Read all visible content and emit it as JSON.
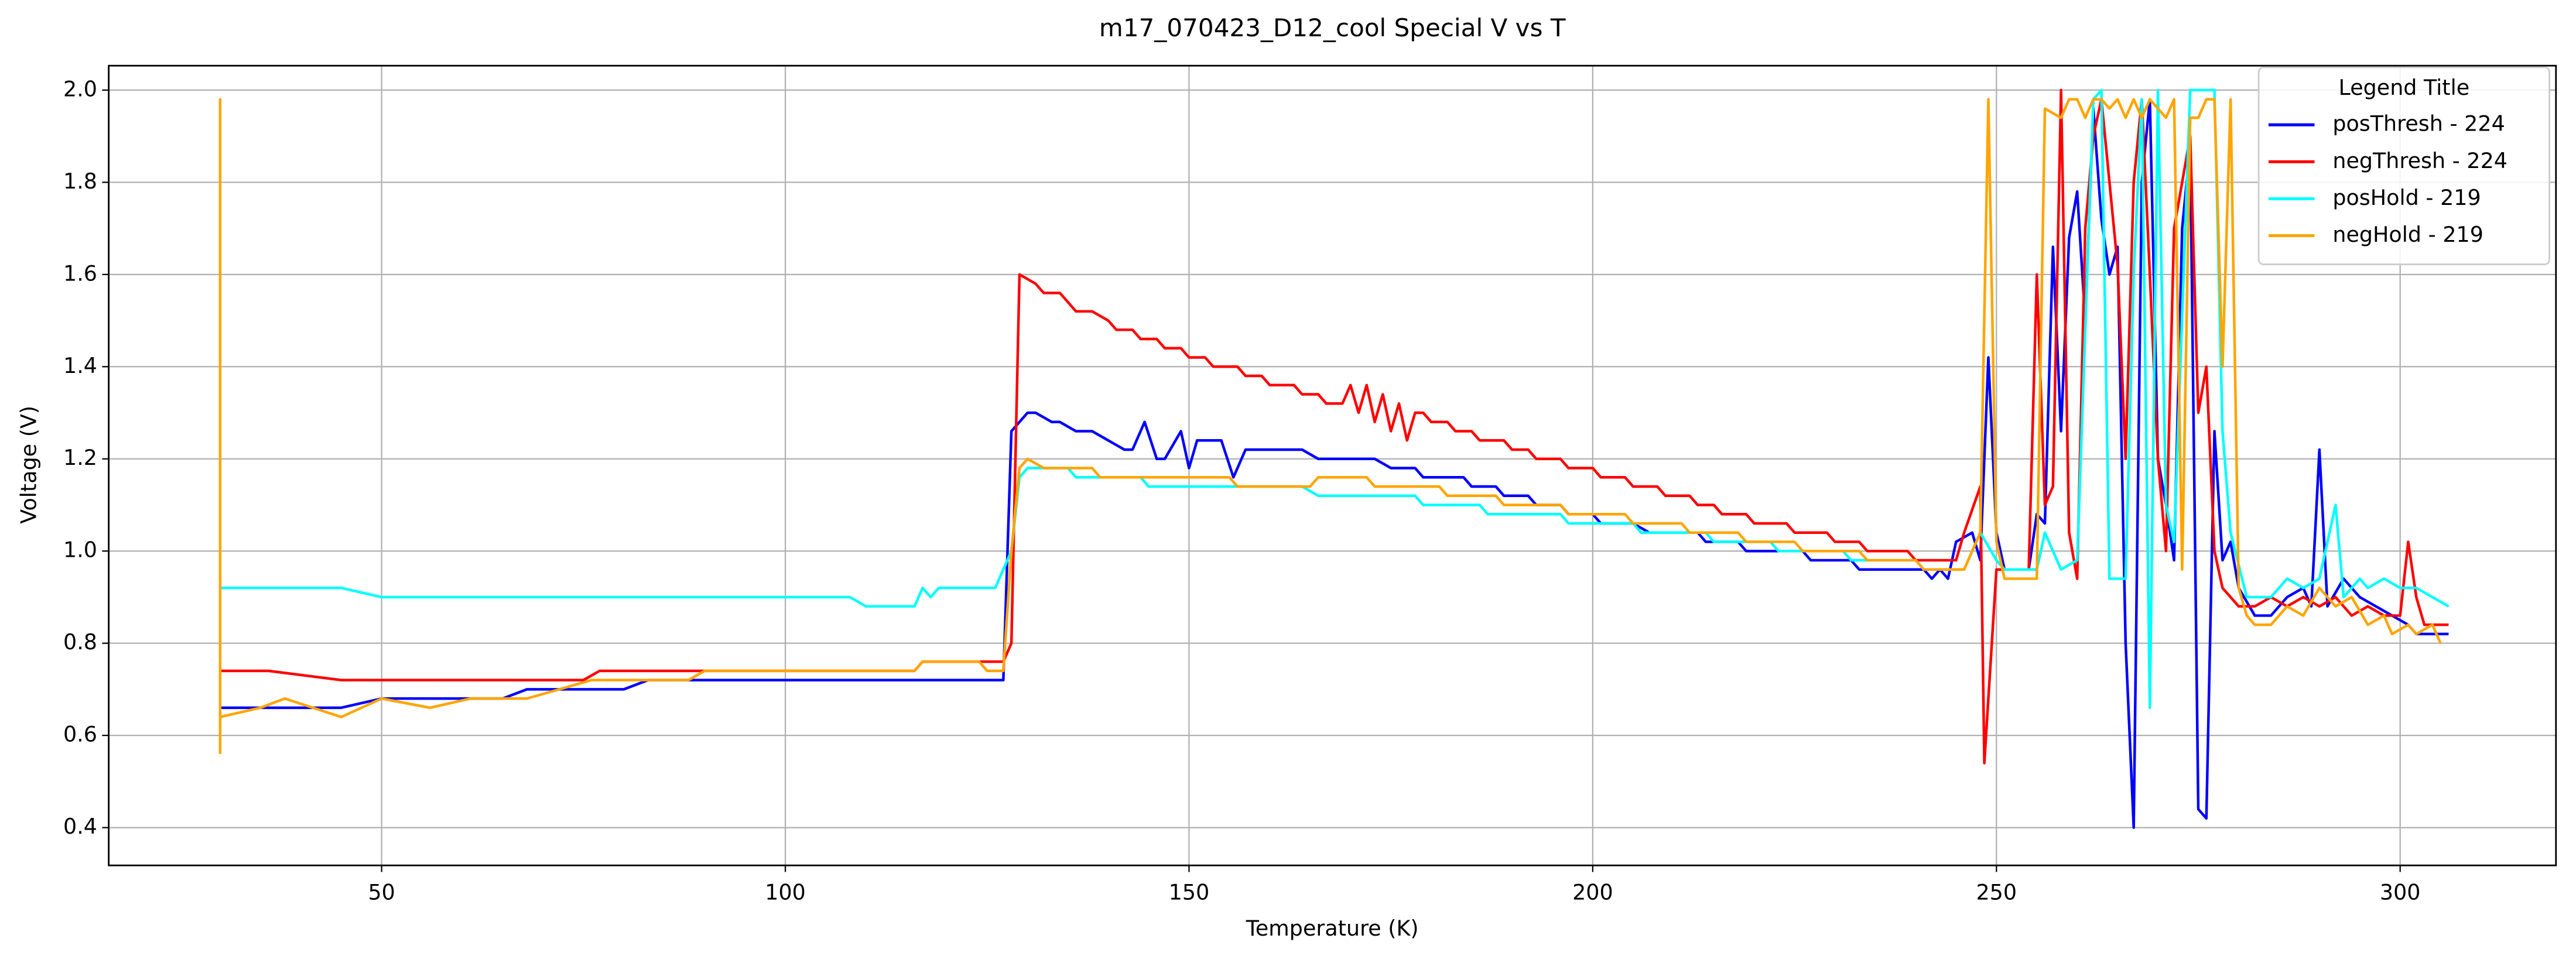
{
  "chart_data": {
    "type": "line",
    "title": "m17_070423_D12_cool Special V vs T",
    "x_label": "Temperature (K)",
    "y_label": "Voltage (V)",
    "legend_title": "Legend Title",
    "legend_loc": "upper right",
    "grid": true,
    "xlim": [
      16.2,
      319.3
    ],
    "ylim": [
      0.318,
      2.053
    ],
    "xticks": [
      50,
      100,
      150,
      200,
      250,
      300
    ],
    "yticks": [
      0.4,
      0.6,
      0.8,
      {
        "value": 1,
        "label": "1.0"
      },
      1.2,
      1.4,
      1.6,
      1.8,
      {
        "value": 2,
        "label": "2.0"
      }
    ],
    "series": [
      {
        "name": "posThresh - 224",
        "color": "#0000ff",
        "x": [
          30,
          45,
          50,
          65,
          68,
          80,
          83,
          127,
          128,
          130,
          131,
          133,
          134,
          136,
          138,
          140,
          142,
          143,
          144.5,
          146,
          147,
          149,
          150,
          151,
          154,
          155.5,
          157,
          164,
          166,
          173,
          175,
          178,
          179,
          184,
          185,
          188,
          189,
          192,
          193,
          196,
          197,
          200,
          201,
          205,
          207,
          213,
          214,
          218,
          219,
          226,
          227,
          232,
          233,
          241,
          242,
          243,
          244,
          245,
          247,
          248,
          249,
          250,
          251,
          254,
          255,
          256,
          257,
          258,
          259,
          260,
          261,
          262,
          263,
          264,
          265,
          266,
          267,
          268,
          269,
          270,
          271,
          272,
          273,
          274,
          275,
          276,
          277,
          278,
          279,
          280,
          282,
          284,
          286,
          288,
          289,
          290,
          291,
          293,
          295,
          297,
          299,
          301,
          302,
          306
        ],
        "values": [
          0.66,
          0.66,
          0.68,
          0.68,
          0.7,
          0.7,
          0.72,
          0.72,
          1.26,
          1.3,
          1.3,
          1.28,
          1.28,
          1.26,
          1.26,
          1.24,
          1.22,
          1.22,
          1.28,
          1.2,
          1.2,
          1.26,
          1.18,
          1.24,
          1.24,
          1.16,
          1.22,
          1.22,
          1.2,
          1.2,
          1.18,
          1.18,
          1.16,
          1.16,
          1.14,
          1.14,
          1.12,
          1.12,
          1.1,
          1.1,
          1.08,
          1.08,
          1.06,
          1.06,
          1.04,
          1.04,
          1.02,
          1.02,
          1.0,
          1.0,
          0.98,
          0.98,
          0.96,
          0.96,
          0.94,
          0.96,
          0.94,
          1.02,
          1.04,
          0.98,
          1.42,
          1.04,
          0.96,
          0.96,
          1.08,
          1.06,
          1.66,
          1.26,
          1.68,
          1.78,
          1.5,
          1.96,
          1.72,
          1.6,
          1.66,
          0.8,
          0.4,
          1.8,
          1.98,
          1.2,
          1.1,
          0.98,
          1.7,
          1.88,
          0.44,
          0.42,
          1.26,
          0.98,
          1.02,
          0.92,
          0.86,
          0.86,
          0.9,
          0.92,
          0.88,
          1.22,
          0.88,
          0.94,
          0.9,
          0.88,
          0.86,
          0.84,
          0.82,
          0.82
        ]
      },
      {
        "name": "negThresh - 224",
        "color": "#ff0000",
        "x": [
          30,
          36,
          45,
          75,
          77,
          90,
          116,
          117,
          127,
          128,
          129,
          131,
          132,
          134,
          136,
          138,
          140,
          141,
          143,
          144,
          146,
          147,
          149,
          150,
          152,
          153,
          156,
          157,
          159,
          160,
          163,
          164,
          166,
          167,
          169,
          170,
          171,
          172,
          173,
          174,
          175,
          176,
          177,
          178,
          179,
          180,
          182,
          183,
          185,
          186,
          189,
          190,
          192,
          193,
          196,
          197,
          200,
          201,
          204,
          205,
          208,
          209,
          212,
          213,
          215,
          216,
          219,
          220,
          224,
          225,
          229,
          230,
          233,
          234,
          239,
          240,
          245,
          246,
          248,
          248.5,
          250,
          254,
          255,
          256,
          257,
          258,
          259,
          260,
          261,
          262,
          263,
          264,
          265,
          266,
          267,
          268,
          269,
          270,
          271,
          272,
          273,
          274,
          275,
          276,
          277,
          278,
          280,
          282,
          284,
          286,
          288,
          290,
          292,
          294,
          296,
          298,
          300,
          301,
          302,
          303,
          306
        ],
        "values": [
          0.74,
          0.74,
          0.72,
          0.72,
          0.74,
          0.74,
          0.74,
          0.76,
          0.76,
          0.8,
          1.6,
          1.58,
          1.56,
          1.56,
          1.52,
          1.52,
          1.5,
          1.48,
          1.48,
          1.46,
          1.46,
          1.44,
          1.44,
          1.42,
          1.42,
          1.4,
          1.4,
          1.38,
          1.38,
          1.36,
          1.36,
          1.34,
          1.34,
          1.32,
          1.32,
          1.36,
          1.3,
          1.36,
          1.28,
          1.34,
          1.26,
          1.32,
          1.24,
          1.3,
          1.3,
          1.28,
          1.28,
          1.26,
          1.26,
          1.24,
          1.24,
          1.22,
          1.22,
          1.2,
          1.2,
          1.18,
          1.18,
          1.16,
          1.16,
          1.14,
          1.14,
          1.12,
          1.12,
          1.1,
          1.1,
          1.08,
          1.08,
          1.06,
          1.06,
          1.04,
          1.04,
          1.02,
          1.02,
          1.0,
          1.0,
          0.98,
          0.98,
          1.04,
          1.14,
          0.54,
          0.96,
          0.96,
          1.6,
          1.1,
          1.14,
          2.0,
          1.04,
          0.94,
          1.7,
          1.9,
          1.98,
          1.8,
          1.62,
          1.2,
          1.8,
          1.98,
          1.6,
          1.2,
          1.0,
          1.7,
          1.8,
          1.9,
          1.3,
          1.4,
          1.0,
          0.92,
          0.88,
          0.88,
          0.9,
          0.88,
          0.9,
          0.88,
          0.9,
          0.86,
          0.88,
          0.86,
          0.86,
          1.02,
          0.9,
          0.84,
          0.84
        ]
      },
      {
        "name": "posHold - 219",
        "color": "#00ffff",
        "x": [
          30,
          45,
          50,
          108,
          110,
          116,
          117,
          118,
          119,
          126,
          128,
          129,
          130,
          135,
          136,
          144,
          145,
          164,
          166,
          178,
          179,
          186,
          187,
          196,
          197,
          205,
          206,
          214,
          215,
          222,
          223,
          231,
          232,
          240,
          241,
          246,
          248,
          250,
          251,
          255,
          256,
          258,
          260,
          262,
          263,
          264,
          266,
          267,
          268,
          269,
          270,
          271,
          272,
          274,
          277,
          278,
          279,
          281,
          284,
          286,
          288,
          290,
          292,
          293,
          295,
          296,
          298,
          300,
          302,
          304,
          306
        ],
        "values": [
          0.92,
          0.92,
          0.9,
          0.9,
          0.88,
          0.88,
          0.92,
          0.9,
          0.92,
          0.92,
          1.0,
          1.16,
          1.18,
          1.18,
          1.16,
          1.16,
          1.14,
          1.14,
          1.12,
          1.12,
          1.1,
          1.1,
          1.08,
          1.08,
          1.06,
          1.06,
          1.04,
          1.04,
          1.02,
          1.02,
          1.0,
          1.0,
          0.98,
          0.98,
          0.96,
          0.96,
          1.04,
          0.98,
          0.96,
          0.96,
          1.04,
          0.96,
          0.98,
          1.98,
          2.0,
          0.94,
          0.94,
          1.6,
          1.98,
          0.66,
          2.0,
          1.1,
          1.02,
          2.0,
          2.0,
          1.26,
          1.04,
          0.9,
          0.9,
          0.94,
          0.92,
          0.94,
          1.1,
          0.9,
          0.94,
          0.92,
          0.94,
          0.92,
          0.92,
          0.9,
          0.88
        ]
      },
      {
        "name": "negHold - 219",
        "color": "#ffa500",
        "x": [
          30,
          30,
          30,
          35,
          38,
          45,
          50,
          56,
          61,
          68,
          72,
          76,
          88,
          90,
          116,
          117,
          124,
          125,
          127,
          128,
          129,
          130,
          132,
          138,
          139,
          155,
          156,
          165,
          166,
          172,
          173,
          181,
          182,
          188,
          189,
          196,
          197,
          204,
          205,
          211,
          212,
          218,
          219,
          225,
          226,
          233,
          234,
          240,
          241,
          246,
          248,
          249,
          250,
          251,
          255,
          256,
          258,
          259,
          260,
          261,
          262,
          263,
          264,
          265,
          266,
          267,
          268,
          269,
          270,
          271,
          272,
          273,
          274,
          275,
          276,
          277,
          278,
          279,
          280,
          281,
          282,
          284,
          286,
          288,
          290,
          292,
          294,
          296,
          298,
          299,
          301,
          302,
          304,
          305
        ],
        "values": [
          0.56,
          1.98,
          0.64,
          0.66,
          0.68,
          0.64,
          0.68,
          0.66,
          0.68,
          0.68,
          0.7,
          0.72,
          0.72,
          0.74,
          0.74,
          0.76,
          0.76,
          0.74,
          0.74,
          1.0,
          1.18,
          1.2,
          1.18,
          1.18,
          1.16,
          1.16,
          1.14,
          1.14,
          1.16,
          1.16,
          1.14,
          1.14,
          1.12,
          1.12,
          1.1,
          1.1,
          1.08,
          1.08,
          1.06,
          1.06,
          1.04,
          1.04,
          1.02,
          1.02,
          1.0,
          1.0,
          0.98,
          0.98,
          0.96,
          0.96,
          1.04,
          1.98,
          1.02,
          0.94,
          0.94,
          1.96,
          1.94,
          1.98,
          1.98,
          1.94,
          1.98,
          1.98,
          1.96,
          1.98,
          1.94,
          1.98,
          1.94,
          1.98,
          1.96,
          1.94,
          1.98,
          0.96,
          1.94,
          1.94,
          1.98,
          1.98,
          1.4,
          1.98,
          0.92,
          0.86,
          0.84,
          0.84,
          0.88,
          0.86,
          0.92,
          0.88,
          0.9,
          0.84,
          0.86,
          0.82,
          0.84,
          0.82,
          0.84,
          0.8
        ]
      }
    ]
  }
}
